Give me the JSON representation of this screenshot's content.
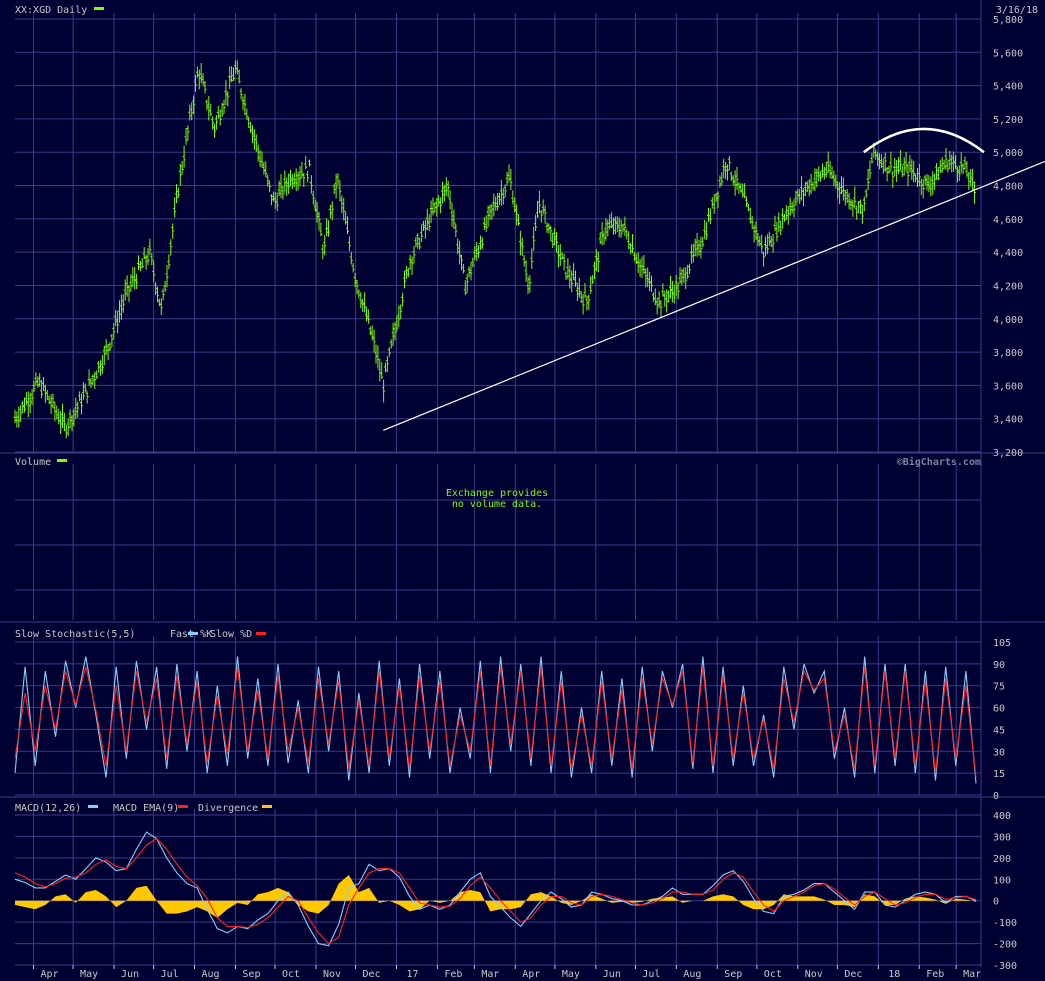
{
  "header": {
    "symbol_title": "XX:XGD Daily",
    "date": "3/16/18"
  },
  "colors": {
    "background": "#000033",
    "grid": "#3c3c8c",
    "text": "#c8c8c8",
    "price": "#7cfc00",
    "fast_k": "#87cefa",
    "slow_d": "#ff2020",
    "macd": "#87cefa",
    "macd_ema": "#ff2020",
    "divergence": "#ffc800",
    "annotation": "#ffffff",
    "watermark": "#8080a0"
  },
  "icons": {
    "legend_swatch": "color-swatch-bar"
  },
  "x_axis": {
    "months": [
      "Apr",
      "May",
      "Jun",
      "Jul",
      "Aug",
      "Sep",
      "Oct",
      "Nov",
      "Dec",
      "17",
      "Feb",
      "Mar",
      "Apr",
      "May",
      "Jun",
      "Jul",
      "Aug",
      "Sep",
      "Oct",
      "Nov",
      "Dec",
      "18",
      "Feb",
      "Mar"
    ]
  },
  "chart_data": [
    {
      "type": "line",
      "title": "XX:XGD Daily",
      "style": "ohlc-bars",
      "ylim": [
        3200,
        5800
      ],
      "yticks": [
        "3,200",
        "3,400",
        "3,600",
        "3,800",
        "4,000",
        "4,200",
        "4,400",
        "4,600",
        "4,800",
        "5,000",
        "5,200",
        "5,400",
        "5,600",
        "5,800"
      ],
      "ytick_values": [
        3200,
        3400,
        3600,
        3800,
        4000,
        4200,
        4400,
        4600,
        4800,
        5000,
        5200,
        5400,
        5600,
        5800
      ],
      "x": [
        "2016-03-18",
        "2016-04-05",
        "2016-04-25",
        "2016-05-10",
        "2016-05-26",
        "2016-06-10",
        "2016-06-28",
        "2016-07-07",
        "2016-07-20",
        "2016-08-04",
        "2016-08-16",
        "2016-09-01",
        "2016-09-15",
        "2016-09-30",
        "2016-10-13",
        "2016-10-27",
        "2016-11-07",
        "2016-11-17",
        "2016-12-01",
        "2016-12-15",
        "2016-12-22",
        "2017-01-11",
        "2017-01-26",
        "2017-02-09",
        "2017-02-22",
        "2017-03-14",
        "2017-03-28",
        "2017-04-11",
        "2017-04-19",
        "2017-05-09",
        "2017-05-25",
        "2017-06-08",
        "2017-06-22",
        "2017-07-06",
        "2017-07-19",
        "2017-08-03",
        "2017-08-22",
        "2017-09-08",
        "2017-09-22",
        "2017-10-06",
        "2017-10-24",
        "2017-11-09",
        "2017-11-23",
        "2017-12-07",
        "2017-12-21",
        "2017-12-28",
        "2018-01-11",
        "2018-01-25",
        "2018-02-08",
        "2018-02-22",
        "2018-03-08",
        "2018-03-16"
      ],
      "values": [
        3400,
        3620,
        3350,
        3550,
        3800,
        4150,
        4400,
        4050,
        4800,
        5500,
        5150,
        5500,
        5100,
        4700,
        4850,
        4900,
        4400,
        4850,
        4250,
        3850,
        3600,
        4350,
        4600,
        4800,
        4200,
        4650,
        4850,
        4200,
        4700,
        4300,
        4100,
        4550,
        4550,
        4300,
        4100,
        4200,
        4500,
        4950,
        4700,
        4400,
        4650,
        4800,
        4900,
        4750,
        4650,
        5000,
        4900,
        4900,
        4800,
        4950,
        4900,
        4750
      ],
      "series": [
        {
          "name": "XX:XGD Daily"
        }
      ],
      "annotations": [
        "trendline",
        "arc"
      ]
    },
    {
      "type": "bar",
      "title": "Volume",
      "note": "Exchange provides\nno volume data.",
      "values": []
    },
    {
      "type": "line",
      "title": "Slow Stochastic(5,5)",
      "ylim": [
        0,
        105
      ],
      "yticks": [
        "0",
        "15",
        "30",
        "45",
        "60",
        "75",
        "90",
        "105"
      ],
      "ytick_values": [
        0,
        15,
        30,
        45,
        60,
        75,
        90,
        105
      ],
      "series": [
        {
          "name": "Fast %K",
          "values": [
            15,
            88,
            20,
            85,
            40,
            92,
            60,
            95,
            55,
            12,
            88,
            25,
            92,
            45,
            88,
            18,
            90,
            30,
            85,
            15,
            75,
            20,
            95,
            25,
            80,
            20,
            90,
            22,
            65,
            15,
            88,
            30,
            85,
            10,
            70,
            15,
            92,
            20,
            80,
            12,
            90,
            25,
            85,
            15,
            60,
            25,
            92,
            15,
            95,
            30,
            90,
            20,
            95,
            15,
            85,
            12,
            60,
            15,
            85,
            20,
            80,
            12,
            88,
            30,
            85,
            60,
            90,
            18,
            95,
            15,
            88,
            20,
            75,
            20,
            55,
            12,
            88,
            45,
            90,
            70,
            85,
            25,
            60,
            12,
            95,
            15,
            90,
            20,
            90,
            15,
            85,
            10,
            88,
            20,
            85,
            8
          ]
        },
        {
          "name": "Slow %D",
          "values": [
            25,
            70,
            30,
            75,
            45,
            85,
            62,
            88,
            58,
            20,
            75,
            30,
            85,
            50,
            80,
            25,
            82,
            35,
            78,
            22,
            68,
            28,
            88,
            30,
            72,
            25,
            82,
            30,
            60,
            22,
            80,
            35,
            78,
            18,
            65,
            20,
            85,
            25,
            75,
            18,
            82,
            30,
            78,
            20,
            55,
            30,
            85,
            20,
            88,
            35,
            85,
            25,
            88,
            20,
            78,
            18,
            55,
            20,
            78,
            25,
            72,
            18,
            80,
            35,
            80,
            62,
            85,
            22,
            88,
            20,
            82,
            25,
            70,
            25,
            52,
            18,
            80,
            50,
            85,
            72,
            80,
            30,
            55,
            18,
            88,
            20,
            85,
            25,
            85,
            20,
            78,
            15,
            80,
            25,
            75,
            12
          ]
        }
      ]
    },
    {
      "type": "line",
      "title": "MACD(12,26)",
      "ylim": [
        -300,
        400
      ],
      "yticks": [
        "-300",
        "-200",
        "-100",
        "0",
        "100",
        "200",
        "300",
        "400"
      ],
      "ytick_values": [
        -300,
        -200,
        -100,
        0,
        100,
        200,
        300,
        400
      ],
      "series": [
        {
          "name": "MACD(12,26)",
          "values": [
            100,
            85,
            60,
            60,
            90,
            120,
            100,
            150,
            200,
            180,
            140,
            150,
            240,
            320,
            290,
            200,
            130,
            80,
            60,
            -40,
            -130,
            -150,
            -120,
            -130,
            -90,
            -60,
            0,
            40,
            -20,
            -120,
            -200,
            -210,
            -110,
            60,
            80,
            170,
            140,
            150,
            110,
            20,
            -40,
            -20,
            -40,
            -20,
            40,
            100,
            130,
            20,
            -30,
            -80,
            -120,
            -60,
            0,
            40,
            10,
            -30,
            -20,
            40,
            30,
            10,
            0,
            -20,
            -20,
            0,
            20,
            60,
            30,
            30,
            30,
            70,
            120,
            140,
            90,
            10,
            -50,
            -60,
            20,
            30,
            50,
            80,
            80,
            40,
            0,
            -40,
            40,
            40,
            -20,
            -30,
            0,
            30,
            40,
            30,
            -10,
            20,
            20,
            0
          ]
        },
        {
          "name": "MACD EMA(9)",
          "values": [
            130,
            110,
            80,
            65,
            80,
            105,
            110,
            130,
            170,
            190,
            160,
            150,
            200,
            260,
            290,
            240,
            170,
            110,
            70,
            10,
            -80,
            -120,
            -120,
            -125,
            -110,
            -80,
            -30,
            20,
            0,
            -80,
            -150,
            -200,
            -170,
            -20,
            60,
            130,
            150,
            150,
            130,
            60,
            -10,
            -20,
            -30,
            -25,
            10,
            70,
            110,
            60,
            0,
            -50,
            -100,
            -80,
            -20,
            20,
            20,
            -10,
            -20,
            20,
            30,
            20,
            5,
            -10,
            -20,
            -10,
            10,
            40,
            40,
            30,
            30,
            50,
            100,
            130,
            110,
            40,
            -20,
            -50,
            0,
            20,
            40,
            70,
            80,
            55,
            15,
            -20,
            20,
            40,
            10,
            -20,
            -10,
            15,
            30,
            30,
            5,
            15,
            20,
            5
          ]
        },
        {
          "name": "Divergence",
          "values": [
            -20,
            -30,
            -40,
            -20,
            20,
            30,
            -10,
            40,
            50,
            20,
            -30,
            0,
            60,
            70,
            0,
            -60,
            -60,
            -50,
            -30,
            -50,
            -80,
            -40,
            -10,
            -20,
            30,
            40,
            60,
            40,
            -20,
            -50,
            -60,
            -20,
            80,
            120,
            40,
            60,
            -10,
            0,
            -20,
            -50,
            -40,
            0,
            -10,
            0,
            40,
            50,
            40,
            -50,
            -40,
            -40,
            -30,
            30,
            40,
            20,
            -10,
            -20,
            0,
            30,
            10,
            -10,
            -5,
            -10,
            -5,
            10,
            15,
            20,
            -10,
            0,
            0,
            20,
            30,
            20,
            -20,
            -40,
            -40,
            -20,
            30,
            20,
            20,
            20,
            5,
            -20,
            -20,
            -30,
            30,
            20,
            -20,
            -20,
            10,
            20,
            15,
            5,
            -15,
            10,
            5,
            -5
          ]
        }
      ]
    }
  ],
  "watermark": "©BigCharts.com"
}
